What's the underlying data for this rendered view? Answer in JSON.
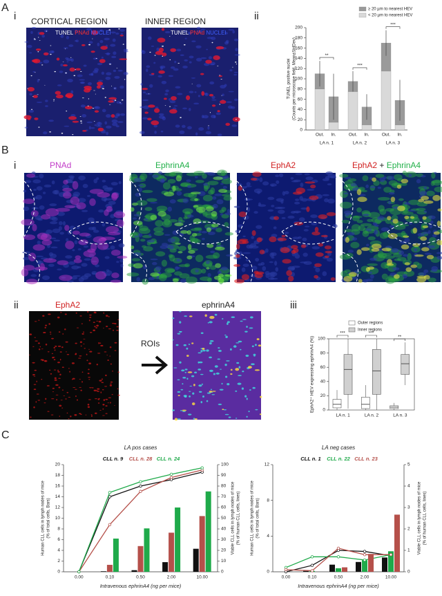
{
  "panel_a": {
    "label": "A",
    "i": "i",
    "ii": "ii",
    "cortical": "CORTICAL REGION",
    "inner": "INNER REGION",
    "overlay": [
      "TUNEL",
      "PNAd",
      "NUCLEI"
    ]
  },
  "panel_b": {
    "label": "B",
    "i": "i",
    "ii": "ii",
    "iii": "iii",
    "stains": [
      "PNAd",
      "EphrinA4",
      "EphA2"
    ],
    "merge": [
      "EphA2",
      "+",
      "EphrinA4"
    ],
    "ii_left": "EphA2",
    "ii_right": "ephrinA4",
    "rois": "ROIs"
  },
  "panel_c": {
    "label": "C"
  },
  "chart_data": [
    {
      "type": "stacked_bar",
      "ylabel": [
        "TUNEL positive nuclei",
        "(Counts per microscope field, Mean±StdDev)"
      ],
      "categories": [
        "Out.",
        "In.",
        "Out.",
        "In.",
        "Out.",
        "In."
      ],
      "groups": [
        "LA n. 1",
        "LA n. 2",
        "LA n. 3"
      ],
      "series": [
        {
          "name": "< 20 µm to nearest HEV",
          "color": "#d9d9d9",
          "values": [
            80,
            15,
            75,
            10,
            115,
            10
          ]
        },
        {
          "name": "≥ 20 µm to nearest HEV",
          "color": "#9a9a9a",
          "values": [
            30,
            50,
            20,
            35,
            55,
            48
          ]
        }
      ],
      "errors": [
        25,
        45,
        20,
        25,
        25,
        40
      ],
      "significance": [
        "**",
        "***",
        "***"
      ],
      "ylim": [
        0,
        200
      ],
      "yticks": [
        0,
        20,
        40,
        60,
        80,
        100,
        120,
        140,
        160,
        180,
        200
      ]
    },
    {
      "type": "box",
      "ylabel": [
        "EphA2⁺ HEV expressing ephrinA4 (%)"
      ],
      "categories": [
        "LA n. 1",
        "LA n. 2",
        "LA n. 3"
      ],
      "series": [
        {
          "name": "Outer regions",
          "color": "#ffffff",
          "min": [
            0,
            0,
            0
          ],
          "q1": [
            3,
            2,
            2
          ],
          "median": [
            8,
            8,
            4
          ],
          "q3": [
            15,
            18,
            6
          ],
          "max": [
            28,
            35,
            10
          ]
        },
        {
          "name": "Inner regions",
          "color": "#d0d0d0",
          "min": [
            2,
            0,
            35
          ],
          "q1": [
            22,
            22,
            50
          ],
          "median": [
            57,
            55,
            65
          ],
          "q3": [
            78,
            85,
            78
          ],
          "max": [
            100,
            100,
            95
          ]
        }
      ],
      "significance": [
        "***",
        "***",
        "**"
      ],
      "ylim": [
        0,
        100
      ],
      "yticks": [
        0,
        20,
        40,
        60,
        80,
        100
      ]
    },
    {
      "type": "bar_line",
      "title": "LA pos cases",
      "xlabel": "Intravenous ephrinA4 (ng per mice)",
      "ylabel": [
        "Human CLL cells in lymph nodes of mice",
        "(% of total cells, Bars)"
      ],
      "y2label": [
        "Viable CLL cells in lymph nodes of mice",
        "(% of human CLL cells, lines)"
      ],
      "categories": [
        "0.00",
        "0.10",
        "0.50",
        "2.00",
        "10.00"
      ],
      "series": [
        {
          "name": "CLL n. 9",
          "color": "#111111",
          "values": [
            0,
            0.1,
            0.3,
            1.8,
            4.3
          ],
          "line_values": [
            0,
            70,
            80,
            86,
            93
          ]
        },
        {
          "name": "CLL n. 28",
          "color": "#b5504a",
          "values": [
            0,
            1.3,
            4.8,
            7.3,
            10.4
          ],
          "line_values": [
            0,
            44,
            75,
            88,
            95
          ]
        },
        {
          "name": "CLL n. 24",
          "color": "#1faa4a",
          "values": [
            0,
            6.2,
            8.1,
            12,
            15
          ],
          "line_values": [
            0,
            74,
            84,
            91,
            97
          ]
        }
      ],
      "ylim": [
        0,
        20
      ],
      "yticks": [
        0,
        2,
        4,
        6,
        8,
        10,
        12,
        14,
        16,
        18,
        20
      ],
      "y2lim": [
        0,
        100
      ],
      "y2ticks": [
        0,
        10,
        20,
        30,
        40,
        50,
        60,
        70,
        80,
        90,
        100
      ]
    },
    {
      "type": "bar_line",
      "title": "LA neg cases",
      "xlabel": "Intravenous ephrinA4 (ng per mice)",
      "ylabel": [
        "Human CLL cells in lymph nodes of mice",
        "(% of total cells, Bars)"
      ],
      "y2label": [
        "Viable CLL cells in lymph nodes of mice",
        "(% of human CLL cells, lines)"
      ],
      "categories": [
        "0.00",
        "0.10",
        "0.50",
        "2.00",
        "10.00"
      ],
      "series": [
        {
          "name": "CLL n. 1",
          "color": "#111111",
          "values": [
            0,
            0.1,
            0.8,
            1.1,
            1.6
          ],
          "line_values": [
            0,
            0.3,
            1,
            0.95,
            0.75
          ]
        },
        {
          "name": "CLL n. 22",
          "color": "#1faa4a",
          "values": [
            0,
            0.1,
            0.4,
            1.3,
            2.3
          ],
          "line_values": [
            0.2,
            0.7,
            0.7,
            0.55,
            0.8
          ]
        },
        {
          "name": "CLL n. 23",
          "color": "#b5504a",
          "values": [
            0,
            0,
            0.5,
            2,
            6.4
          ],
          "line_values": [
            0.1,
            0.05,
            1.1,
            0.8,
            0.8
          ]
        }
      ],
      "ylim": [
        0,
        12
      ],
      "yticks": [
        0,
        4,
        8,
        12
      ],
      "y2lim": [
        0,
        5
      ],
      "y2ticks": [
        0,
        1,
        2,
        3,
        4,
        5
      ]
    }
  ]
}
